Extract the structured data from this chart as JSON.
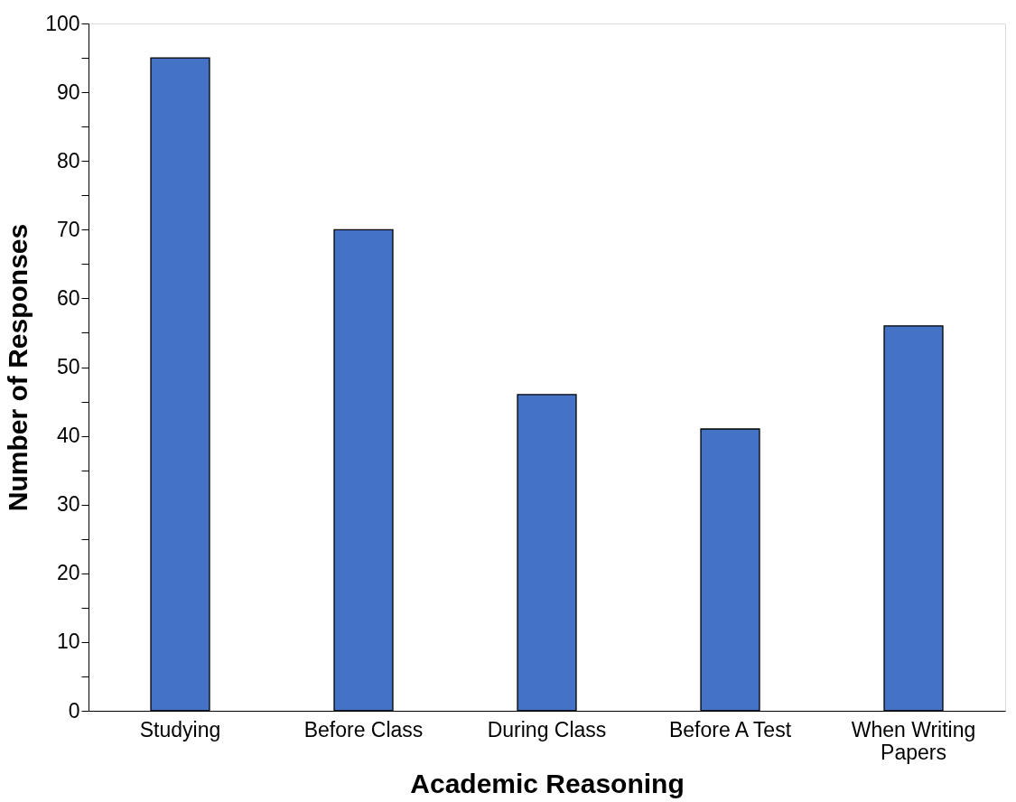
{
  "chart_data": {
    "type": "bar",
    "xlabel": "Academic Reasoning",
    "ylabel": "Number of Responses",
    "categories": [
      "Studying",
      "Before Class",
      "During Class",
      "Before A Test",
      "When Writing Papers"
    ],
    "values": [
      95,
      70,
      46,
      41,
      56
    ],
    "color": "#4472c4",
    "ylim": [
      0,
      100
    ],
    "yticks": [
      0,
      {
        "value": 5,
        "label": null
      },
      10,
      {
        "value": 15,
        "label": null
      },
      20,
      {
        "value": 25,
        "label": null
      },
      30,
      {
        "value": 35,
        "label": null
      },
      40,
      {
        "value": 45,
        "label": null
      },
      50,
      {
        "value": 55,
        "label": null
      },
      60,
      {
        "value": 65,
        "label": null
      },
      70,
      {
        "value": 75,
        "label": null
      },
      80,
      {
        "value": 85,
        "label": null
      },
      90,
      {
        "value": 95,
        "label": null
      },
      100
    ],
    "grid": false
  }
}
